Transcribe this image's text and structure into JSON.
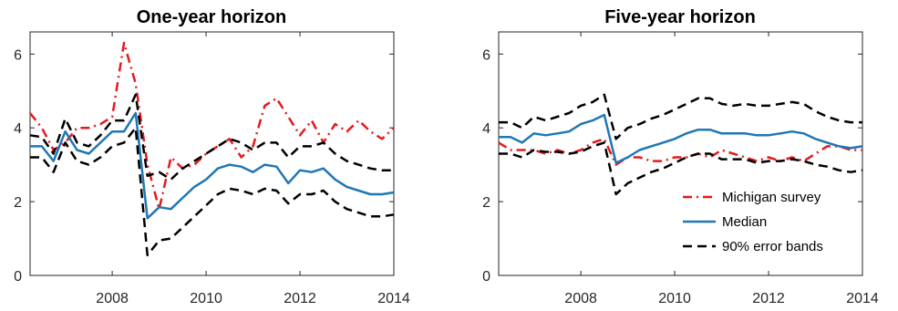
{
  "chart_data": [
    {
      "type": "line",
      "title": "One-year horizon",
      "xlabel": "",
      "ylabel": "",
      "xlim": [
        2006.25,
        2014.0
      ],
      "ylim": [
        0,
        6.6
      ],
      "xticks": [
        2008,
        2010,
        2012,
        2014
      ],
      "yticks": [
        0,
        2,
        4,
        6
      ],
      "grid": false,
      "legend": null,
      "x": [
        2006.25,
        2006.5,
        2006.75,
        2007.0,
        2007.25,
        2007.5,
        2007.75,
        2008.0,
        2008.25,
        2008.5,
        2008.75,
        2009.0,
        2009.25,
        2009.5,
        2009.75,
        2010.0,
        2010.25,
        2010.5,
        2010.75,
        2011.0,
        2011.25,
        2011.5,
        2011.75,
        2012.0,
        2012.25,
        2012.5,
        2012.75,
        2013.0,
        2013.25,
        2013.5,
        2013.75,
        2014.0
      ],
      "series": [
        {
          "key": "michigan",
          "color": "#e41a1c",
          "style": "dashdot",
          "values": [
            4.4,
            4.0,
            3.4,
            3.6,
            4.0,
            4.0,
            4.1,
            4.3,
            6.3,
            5.2,
            3.0,
            1.8,
            3.2,
            2.9,
            3.0,
            3.3,
            3.5,
            3.7,
            3.2,
            3.5,
            4.6,
            4.8,
            4.3,
            3.8,
            4.2,
            3.6,
            4.1,
            3.9,
            4.2,
            3.9,
            3.7,
            4.0
          ]
        },
        {
          "key": "median",
          "color": "#1f77b4",
          "style": "solid",
          "values": [
            3.5,
            3.5,
            3.1,
            3.9,
            3.4,
            3.3,
            3.6,
            3.9,
            3.9,
            4.4,
            1.55,
            1.85,
            1.8,
            2.1,
            2.4,
            2.6,
            2.9,
            3.0,
            2.95,
            2.8,
            3.0,
            2.95,
            2.5,
            2.85,
            2.8,
            2.9,
            2.6,
            2.4,
            2.3,
            2.2,
            2.2,
            2.25
          ]
        },
        {
          "key": "upper",
          "color": "#000000",
          "style": "dashed",
          "values": [
            3.8,
            3.75,
            3.3,
            4.25,
            3.6,
            3.5,
            3.8,
            4.2,
            4.2,
            4.9,
            2.7,
            2.8,
            2.6,
            2.9,
            3.1,
            3.3,
            3.5,
            3.7,
            3.6,
            3.4,
            3.6,
            3.6,
            3.2,
            3.5,
            3.5,
            3.6,
            3.3,
            3.1,
            3.0,
            2.9,
            2.85,
            2.85
          ]
        },
        {
          "key": "lower",
          "color": "#000000",
          "style": "dashed",
          "values": [
            3.2,
            3.2,
            2.8,
            3.6,
            3.1,
            3.0,
            3.2,
            3.5,
            3.6,
            4.0,
            0.55,
            0.95,
            1.0,
            1.3,
            1.6,
            1.9,
            2.2,
            2.35,
            2.3,
            2.2,
            2.35,
            2.3,
            1.95,
            2.2,
            2.2,
            2.3,
            2.0,
            1.8,
            1.7,
            1.6,
            1.6,
            1.65
          ]
        }
      ]
    },
    {
      "type": "line",
      "title": "Five-year horizon",
      "xlabel": "",
      "ylabel": "",
      "xlim": [
        2006.25,
        2014.0
      ],
      "ylim": [
        0,
        6.6
      ],
      "xticks": [
        2008,
        2010,
        2012,
        2014
      ],
      "yticks": [
        0,
        2,
        4,
        6
      ],
      "grid": false,
      "legend": "bottom-right",
      "x": [
        2006.25,
        2006.5,
        2006.75,
        2007.0,
        2007.25,
        2007.5,
        2007.75,
        2008.0,
        2008.25,
        2008.5,
        2008.75,
        2009.0,
        2009.25,
        2009.5,
        2009.75,
        2010.0,
        2010.25,
        2010.5,
        2010.75,
        2011.0,
        2011.25,
        2011.5,
        2011.75,
        2012.0,
        2012.25,
        2012.5,
        2012.75,
        2013.0,
        2013.25,
        2013.5,
        2013.75,
        2014.0
      ],
      "series": [
        {
          "key": "michigan",
          "name": "Michigan survey",
          "color": "#e41a1c",
          "style": "dashdot",
          "values": [
            3.6,
            3.4,
            3.4,
            3.4,
            3.3,
            3.4,
            3.3,
            3.4,
            3.6,
            3.7,
            3.0,
            3.2,
            3.2,
            3.1,
            3.1,
            3.2,
            3.2,
            3.3,
            3.2,
            3.4,
            3.3,
            3.2,
            3.1,
            3.2,
            3.1,
            3.2,
            3.1,
            3.3,
            3.5,
            3.5,
            3.4,
            3.4
          ]
        },
        {
          "key": "median",
          "name": "Median",
          "color": "#1f77b4",
          "style": "solid",
          "values": [
            3.75,
            3.75,
            3.6,
            3.85,
            3.8,
            3.85,
            3.9,
            4.1,
            4.2,
            4.35,
            3.05,
            3.2,
            3.4,
            3.5,
            3.6,
            3.7,
            3.85,
            3.95,
            3.95,
            3.85,
            3.85,
            3.85,
            3.8,
            3.8,
            3.85,
            3.9,
            3.85,
            3.7,
            3.6,
            3.5,
            3.45,
            3.5
          ]
        },
        {
          "key": "upper",
          "name": "90% error bands",
          "color": "#000000",
          "style": "dashed",
          "values": [
            4.15,
            4.15,
            4.0,
            4.3,
            4.2,
            4.3,
            4.4,
            4.6,
            4.7,
            4.9,
            3.7,
            4.0,
            4.1,
            4.25,
            4.35,
            4.5,
            4.65,
            4.8,
            4.8,
            4.65,
            4.6,
            4.65,
            4.6,
            4.6,
            4.65,
            4.7,
            4.65,
            4.45,
            4.3,
            4.2,
            4.15,
            4.15
          ]
        },
        {
          "key": "lower",
          "color": "#000000",
          "style": "dashed",
          "values": [
            3.3,
            3.3,
            3.2,
            3.4,
            3.35,
            3.35,
            3.3,
            3.35,
            3.5,
            3.6,
            2.2,
            2.5,
            2.65,
            2.8,
            2.9,
            3.05,
            3.2,
            3.3,
            3.3,
            3.15,
            3.15,
            3.15,
            3.05,
            3.1,
            3.1,
            3.15,
            3.1,
            3.0,
            2.95,
            2.85,
            2.8,
            2.85
          ]
        }
      ]
    }
  ]
}
